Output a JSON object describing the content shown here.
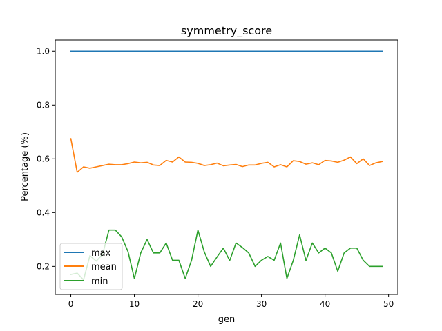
{
  "chart_data": {
    "type": "line",
    "title": "symmetry_score",
    "xlabel": "gen",
    "ylabel": "Percentage (%)",
    "xlim": [
      -2.45,
      51.45
    ],
    "ylim": [
      0.0958,
      1.0417
    ],
    "xticks": [
      0,
      10,
      20,
      30,
      40,
      50
    ],
    "xtick_labels": [
      "0",
      "10",
      "20",
      "30",
      "40",
      "50"
    ],
    "yticks": [
      0.2,
      0.4,
      0.6,
      0.8,
      1.0
    ],
    "ytick_labels": [
      "0.2",
      "0.4",
      "0.6",
      "0.8",
      "1.0"
    ],
    "grid": false,
    "legend_position": "lower-left",
    "x": [
      0,
      1,
      2,
      3,
      4,
      5,
      6,
      7,
      8,
      9,
      10,
      11,
      12,
      13,
      14,
      15,
      16,
      17,
      18,
      19,
      20,
      21,
      22,
      23,
      24,
      25,
      26,
      27,
      28,
      29,
      30,
      31,
      32,
      33,
      34,
      35,
      36,
      37,
      38,
      39,
      40,
      41,
      42,
      43,
      44,
      45,
      46,
      47,
      48,
      49
    ],
    "series": [
      {
        "name": "max",
        "color": "#1f77b4",
        "values": [
          1,
          1,
          1,
          1,
          1,
          1,
          1,
          1,
          1,
          1,
          1,
          1,
          1,
          1,
          1,
          1,
          1,
          1,
          1,
          1,
          1,
          1,
          1,
          1,
          1,
          1,
          1,
          1,
          1,
          1,
          1,
          1,
          1,
          1,
          1,
          1,
          1,
          1,
          1,
          1,
          1,
          1,
          1,
          1,
          1,
          1,
          1,
          1,
          1,
          1
        ]
      },
      {
        "name": "mean",
        "color": "#ff7f0e",
        "values": [
          0.675,
          0.55,
          0.57,
          0.565,
          0.57,
          0.575,
          0.58,
          0.578,
          0.578,
          0.582,
          0.588,
          0.585,
          0.587,
          0.577,
          0.575,
          0.594,
          0.588,
          0.607,
          0.588,
          0.587,
          0.583,
          0.575,
          0.578,
          0.584,
          0.574,
          0.577,
          0.579,
          0.571,
          0.577,
          0.577,
          0.583,
          0.587,
          0.57,
          0.578,
          0.57,
          0.593,
          0.59,
          0.58,
          0.585,
          0.578,
          0.594,
          0.592,
          0.587,
          0.595,
          0.607,
          0.582,
          0.6,
          0.575,
          0.585,
          0.59
        ]
      },
      {
        "name": "min",
        "color": "#2ca02c",
        "values": [
          0.17,
          0.175,
          0.15,
          0.24,
          0.22,
          0.245,
          0.335,
          0.335,
          0.31,
          0.255,
          0.155,
          0.25,
          0.3,
          0.25,
          0.25,
          0.287,
          0.223,
          0.223,
          0.155,
          0.223,
          0.335,
          0.254,
          0.2,
          0.235,
          0.268,
          0.222,
          0.287,
          0.27,
          0.25,
          0.2,
          0.223,
          0.237,
          0.223,
          0.287,
          0.155,
          0.222,
          0.317,
          0.222,
          0.287,
          0.25,
          0.268,
          0.25,
          0.182,
          0.25,
          0.268,
          0.268,
          0.223,
          0.2,
          0.2,
          0.2
        ]
      }
    ]
  }
}
